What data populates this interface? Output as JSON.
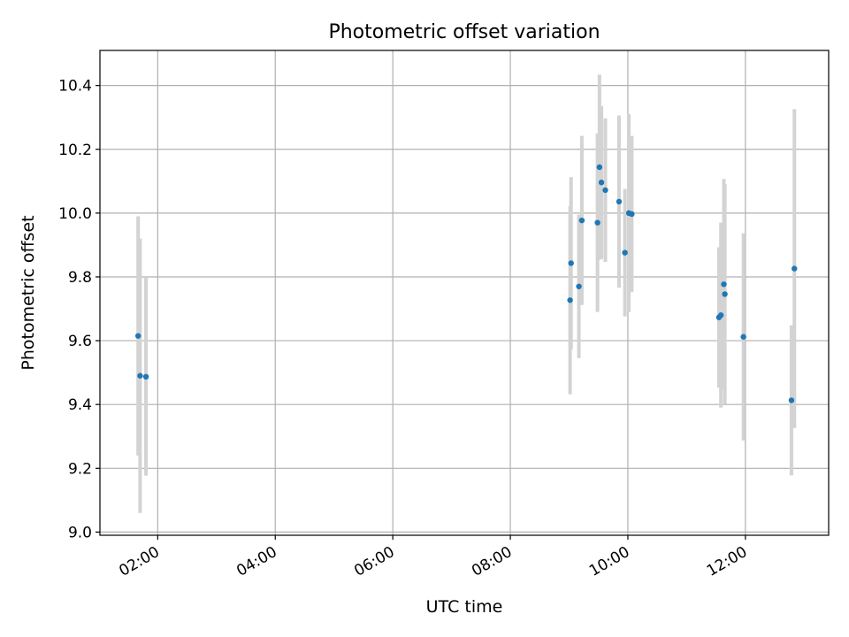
{
  "chart_data": {
    "type": "scatter",
    "title": "Photometric offset variation",
    "xlabel": "UTC time",
    "ylabel": "Photometric offset",
    "x_ticks": [
      "02:00",
      "04:00",
      "06:00",
      "08:00",
      "10:00",
      "12:00"
    ],
    "y_ticks": [
      "9.0",
      "9.2",
      "9.4",
      "9.6",
      "9.8",
      "10.0",
      "10.2",
      "10.4"
    ],
    "xlim": [
      "01:01",
      "13:25"
    ],
    "ylim": [
      8.99,
      10.51
    ],
    "grid": true,
    "colors": {
      "point": "#1f77b4",
      "errorbar": "#d3d3d3",
      "grid": "#b0b0b0"
    },
    "points": [
      {
        "x": "01:40",
        "y": 9.615,
        "err": 0.375
      },
      {
        "x": "01:42",
        "y": 9.49,
        "err": 0.43
      },
      {
        "x": "01:48",
        "y": 9.487,
        "err": 0.31
      },
      {
        "x": "09:01",
        "y": 9.727,
        "err": 0.295
      },
      {
        "x": "09:02",
        "y": 9.843,
        "err": 0.27
      },
      {
        "x": "09:10",
        "y": 9.77,
        "err": 0.225
      },
      {
        "x": "09:13",
        "y": 9.977,
        "err": 0.265
      },
      {
        "x": "09:29",
        "y": 9.97,
        "err": 0.28
      },
      {
        "x": "09:31",
        "y": 10.144,
        "err": 0.29
      },
      {
        "x": "09:33",
        "y": 10.096,
        "err": 0.24
      },
      {
        "x": "09:37",
        "y": 10.072,
        "err": 0.225
      },
      {
        "x": "09:51",
        "y": 10.036,
        "err": 0.27
      },
      {
        "x": "09:57",
        "y": 9.876,
        "err": 0.2
      },
      {
        "x": "10:01",
        "y": 10.0,
        "err": 0.31
      },
      {
        "x": "10:04",
        "y": 9.997,
        "err": 0.245
      },
      {
        "x": "11:33",
        "y": 9.673,
        "err": 0.22
      },
      {
        "x": "11:35",
        "y": 9.68,
        "err": 0.29
      },
      {
        "x": "11:38",
        "y": 9.777,
        "err": 0.33
      },
      {
        "x": "11:39",
        "y": 9.746,
        "err": 0.345
      },
      {
        "x": "11:58",
        "y": 9.612,
        "err": 0.325
      },
      {
        "x": "12:47",
        "y": 9.413,
        "err": 0.235
      },
      {
        "x": "12:50",
        "y": 9.826,
        "err": 0.5
      }
    ]
  }
}
